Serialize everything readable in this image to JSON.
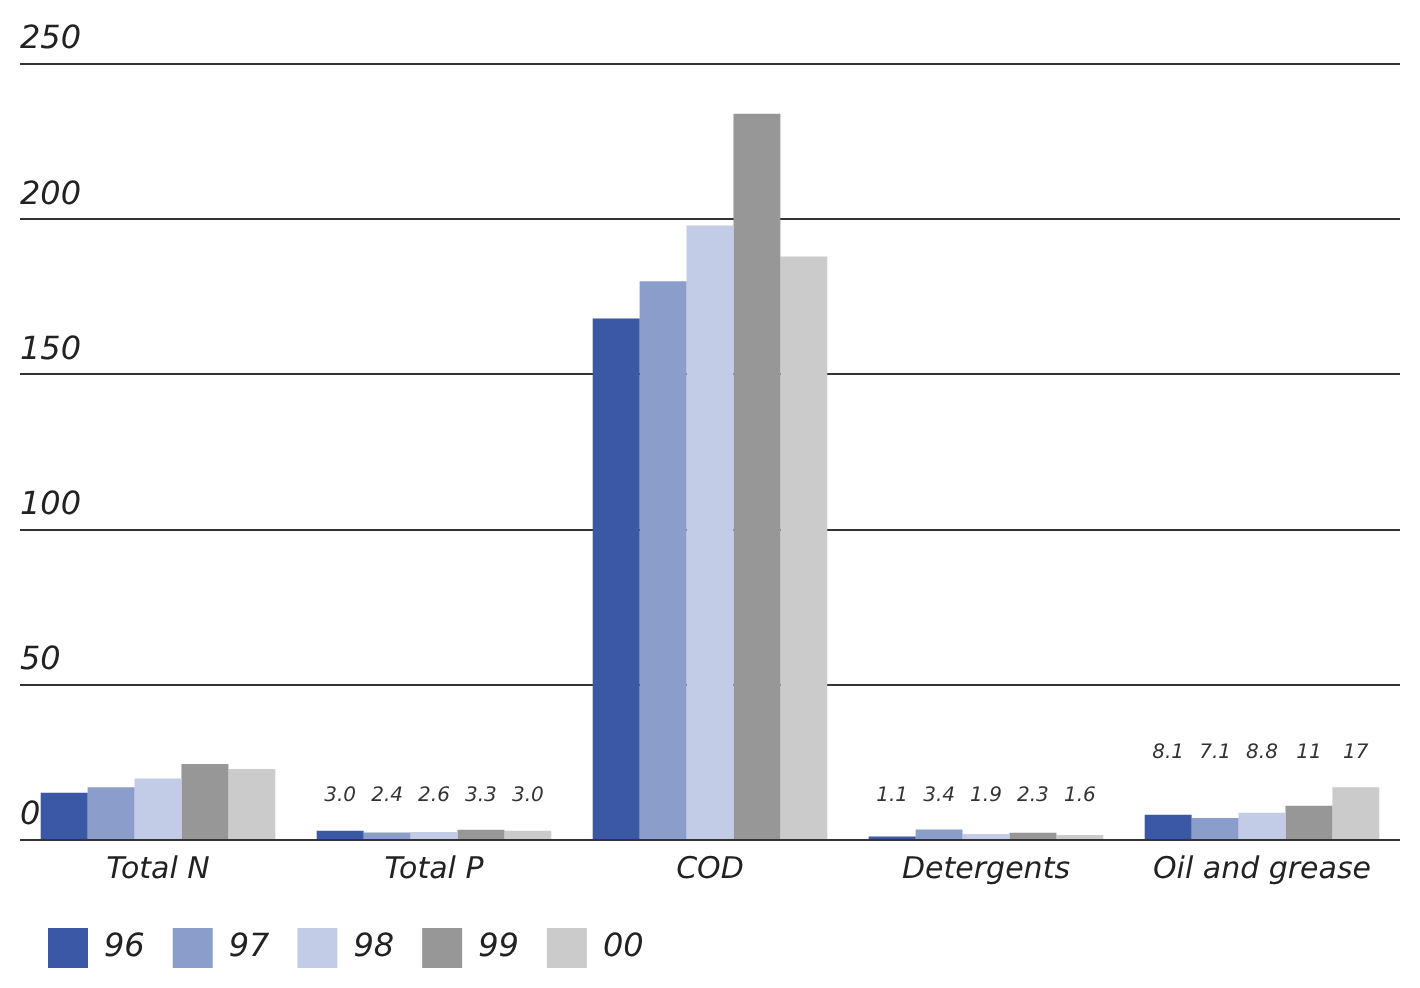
{
  "chart_data": {
    "type": "bar",
    "categories": [
      "Total N",
      "Total P",
      "COD",
      "Detergents",
      "Oil and grease"
    ],
    "series": [
      {
        "name": "96",
        "color": "#3a58a5",
        "values": [
          15.2,
          3.0,
          168,
          1.1,
          8.1
        ],
        "value_labels": [
          null,
          "3.0",
          null,
          "1.1",
          "8.1"
        ]
      },
      {
        "name": "97",
        "color": "#8a9dcb",
        "values": [
          17,
          2.4,
          180,
          3.4,
          7.1
        ],
        "value_labels": [
          null,
          "2.4",
          null,
          "3.4",
          "7.1"
        ]
      },
      {
        "name": "98",
        "color": "#c3cce6",
        "values": [
          19.8,
          2.6,
          198,
          1.9,
          8.8
        ],
        "value_labels": [
          null,
          "2.6",
          null,
          "1.9",
          "8.8"
        ]
      },
      {
        "name": "99",
        "color": "#979797",
        "values": [
          24.5,
          3.3,
          234,
          2.3,
          11
        ],
        "value_labels": [
          null,
          "3.3",
          null,
          "2.3",
          "11"
        ]
      },
      {
        "name": "00",
        "color": "#cbcbcb",
        "values": [
          22.9,
          3.0,
          188,
          1.6,
          17
        ],
        "value_labels": [
          null,
          "3.0",
          null,
          "1.6",
          "17"
        ]
      }
    ],
    "ylim": [
      0,
      250
    ],
    "yticks": [
      0,
      50,
      100,
      150,
      200,
      250
    ],
    "grid": "y",
    "legend": "bottom left"
  }
}
